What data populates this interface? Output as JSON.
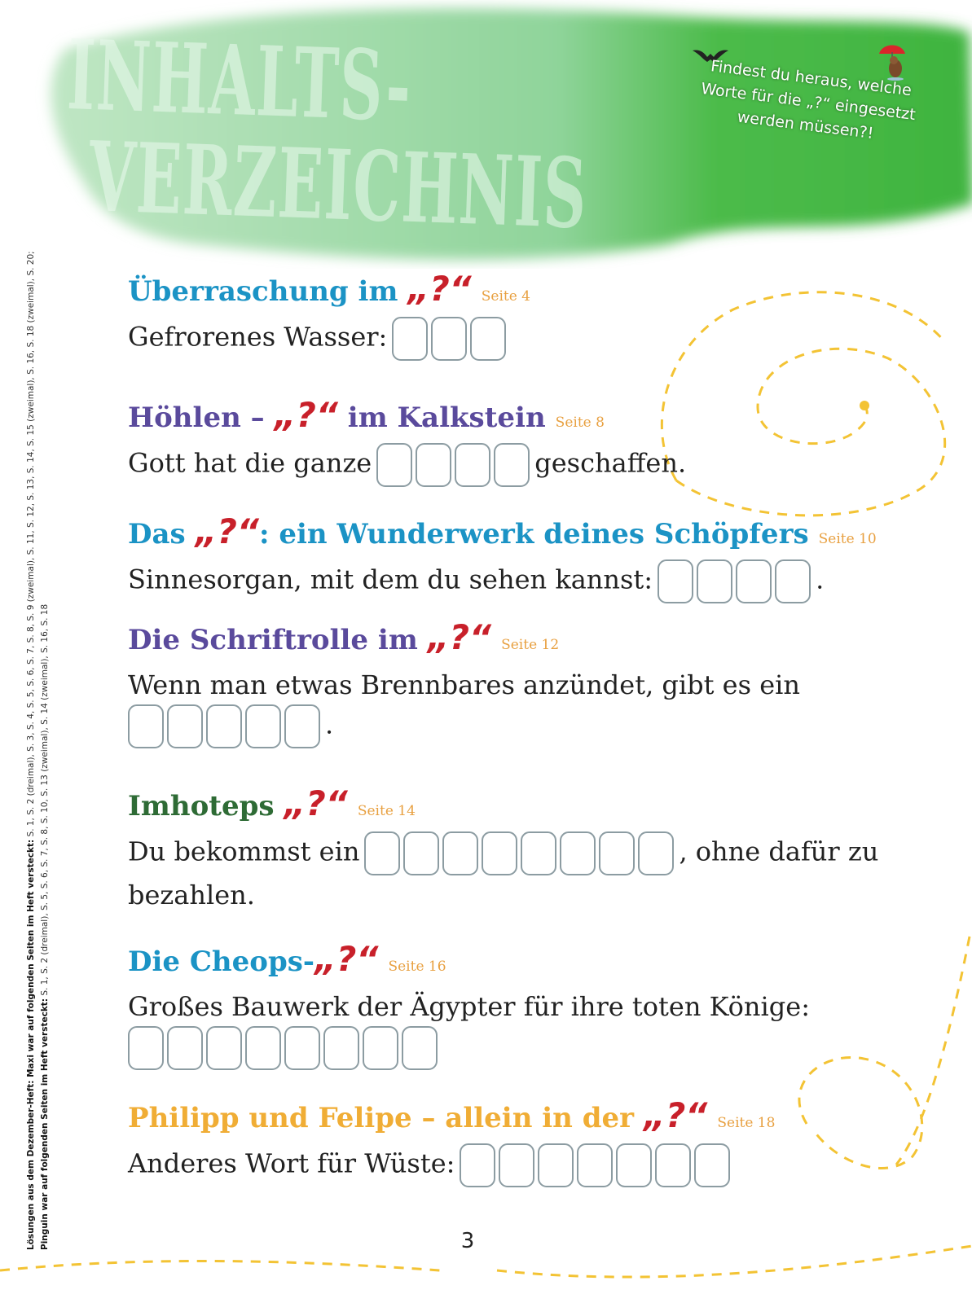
{
  "header": {
    "title_line1": "INHALTS-",
    "title_line2": "VERZEICHNIS",
    "note": "Findest du heraus, welche Worte für die „?“ eingesetzt werden müssen?!"
  },
  "colors": {
    "blue": "#1b93c5",
    "purple": "#5a4a9c",
    "green": "#2e6b35",
    "orange": "#f0ad35",
    "red": "#c8202a",
    "seite": "#e8a040",
    "green_wash": "#4cbb4a"
  },
  "sidebar": {
    "line1_bold": "Lösungen aus dem Dezember-Heft: Maxi war auf folgenden Seiten im Heft versteckt:",
    "line1_rest": " S. 1, S. 2 (dreimal), S. 3, S. 4, S. 5, S. 6, S. 7, S. 8, S. 9 (zweimal), S. 11, S. 12, S. 13, S. 14, S. 15 (zweimal), S. 16, S. 18 (zweimal), S. 20;",
    "line2_bold": "Pinguin war auf folgenden Seiten im Heft versteckt:",
    "line2_rest": " S. 1, S. 2 (dreimal), S. 5, S. 6, S. 7, S. 8, S. 10, S. 13 (zweimal), S. 14 (zweimal), S. 16, S. 18"
  },
  "question_mark": "„?“",
  "sections": [
    {
      "title_before": "Überraschung im ",
      "title_after": "",
      "seite": "Seite 4",
      "color": "#1b93c5",
      "q_before": "Gefrorenes Wasser:",
      "q_after": "",
      "boxes": 3,
      "boxes_newline": false
    },
    {
      "title_before": "Höhlen – ",
      "title_after": " im Kalkstein",
      "seite": "Seite 8",
      "color": "#5a4a9c",
      "q_before": "Gott hat die ganze",
      "q_after": "geschaffen.",
      "boxes": 4,
      "boxes_newline": false
    },
    {
      "title_before": "Das ",
      "title_after": ": ein Wunderwerk deines Schöpfers",
      "seite": "Seite 10",
      "color": "#1b93c5",
      "q_before": "Sinnesorgan, mit dem du sehen kannst:",
      "q_after": ".",
      "boxes": 4,
      "boxes_newline": false
    },
    {
      "title_before": "Die Schriftrolle im ",
      "title_after": "",
      "seite": "Seite 12",
      "color": "#5a4a9c",
      "q_before": "Wenn man etwas Brennbares anzündet, gibt es ein",
      "q_after": ".",
      "boxes": 5,
      "boxes_newline": true
    },
    {
      "title_before": "Imhoteps ",
      "title_after": "",
      "seite": "Seite 14",
      "color": "#2e6b35",
      "q_before": "Du bekommst ein",
      "q_after": ", ohne dafür zu bezahlen.",
      "boxes": 8,
      "boxes_newline": false
    },
    {
      "title_before": "Die Cheops-",
      "title_after": "",
      "seite": "Seite 16",
      "color": "#1b93c5",
      "q_before": "Großes Bauwerk der Ägypter für ihre toten Könige:",
      "q_after": "",
      "boxes": 8,
      "boxes_newline": true
    },
    {
      "title_before": "Philipp und Felipe – allein in der ",
      "title_after": "",
      "seite": "Seite 18",
      "color": "#f0ad35",
      "q_before": "Anderes Wort für Wüste:",
      "q_after": "",
      "boxes": 7,
      "boxes_newline": false
    }
  ],
  "page_number": "3"
}
